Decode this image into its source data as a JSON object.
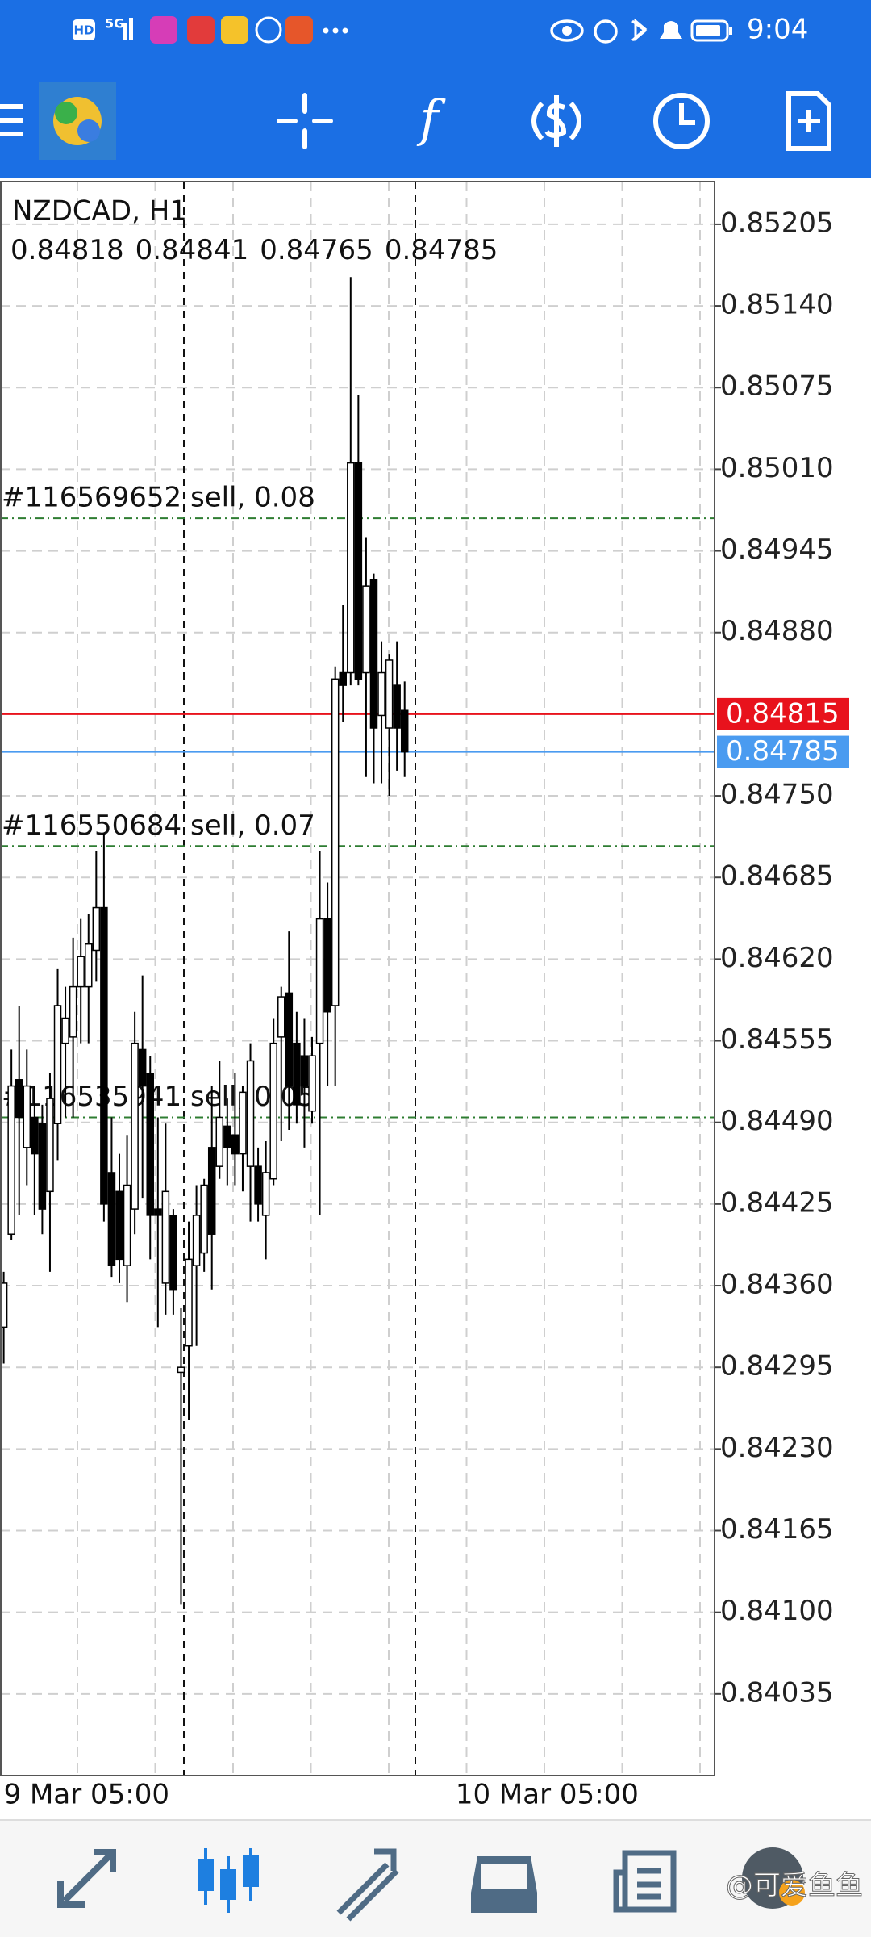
{
  "status_bar": {
    "time": "9:04",
    "hd": "HD",
    "network": "5G"
  },
  "toolbar": {
    "indicator_icon": "f"
  },
  "watermark": "@可爱鱼鱼",
  "chart_data": {
    "type": "candlestick",
    "title": "NZDCAD, H1",
    "categories": [
      "9 Mar 05:00",
      null,
      null,
      null,
      null,
      null,
      null,
      null,
      null,
      null,
      null,
      null,
      null,
      null,
      null,
      null,
      null,
      null,
      null,
      null,
      null,
      null,
      null,
      null,
      null,
      null,
      null,
      null,
      null,
      "10 Mar 05:00",
      null,
      null,
      null,
      null,
      null,
      null,
      null,
      null,
      null,
      null,
      null,
      null,
      null,
      null,
      null,
      null,
      null,
      null,
      null,
      null,
      null,
      null,
      null
    ],
    "open": [
      0.84327,
      0.84401,
      0.84524,
      0.8447,
      0.84494,
      0.84489,
      0.84435,
      0.84489,
      0.84553,
      0.84558,
      0.84598,
      0.84598,
      0.84627,
      0.84661,
      0.8445,
      0.84435,
      0.84376,
      0.84421,
      0.84548,
      0.84529,
      0.84421,
      0.84362,
      0.84416,
      0.84291,
      0.84312,
      0.84376,
      0.84386,
      0.8447,
      0.84455,
      0.84487,
      0.8448,
      0.84465,
      0.84455,
      0.84455,
      0.84416,
      0.84445,
      0.84558,
      0.84593,
      0.84553,
      0.84543,
      0.84499,
      0.84553,
      0.84652,
      0.84583,
      0.84848,
      0.84848,
      0.85015,
      0.84848,
      0.84922,
      0.84814,
      0.84804,
      0.84838,
      0.84818
    ],
    "high": [
      0.84371,
      0.84548,
      0.84583,
      0.84548,
      0.84519,
      0.84504,
      0.84529,
      0.84612,
      0.84598,
      0.84637,
      0.84652,
      0.84656,
      0.84706,
      0.8472,
      0.84494,
      0.84465,
      0.8448,
      0.84578,
      0.84607,
      0.84543,
      0.84494,
      0.84489,
      0.84421,
      0.84342,
      0.84411,
      0.8444,
      0.84445,
      0.84519,
      0.84539,
      0.84509,
      0.84529,
      0.84519,
      0.84553,
      0.8447,
      0.84475,
      0.84573,
      0.84598,
      0.84642,
      0.84578,
      0.84573,
      0.84558,
      0.84706,
      0.84681,
      0.84853,
      0.84902,
      0.85163,
      0.85069,
      0.84956,
      0.84927,
      0.84873,
      0.84863,
      0.84873,
      0.84841
    ],
    "low": [
      0.84298,
      0.84396,
      0.84416,
      0.8444,
      0.84416,
      0.84401,
      0.84371,
      0.8446,
      0.84494,
      0.84494,
      0.84553,
      0.84553,
      0.84602,
      0.84411,
      0.84367,
      0.84362,
      0.84347,
      0.84401,
      0.8443,
      0.84381,
      0.84327,
      0.84337,
      0.84337,
      0.84106,
      0.84253,
      0.84312,
      0.84371,
      0.84357,
      0.84445,
      0.8444,
      0.8444,
      0.84435,
      0.84411,
      0.84411,
      0.84381,
      0.8444,
      0.84475,
      0.84484,
      0.84489,
      0.8447,
      0.84489,
      0.84416,
      0.84519,
      0.84519,
      0.84809,
      0.84838,
      0.84838,
      0.84765,
      0.8476,
      0.8476,
      0.8475,
      0.8477,
      0.84765
    ],
    "close": [
      0.84362,
      0.84519,
      0.84494,
      0.84519,
      0.84465,
      0.84421,
      0.84509,
      0.84583,
      0.84573,
      0.84598,
      0.84622,
      0.84632,
      0.84661,
      0.84425,
      0.84376,
      0.84381,
      0.8444,
      0.84553,
      0.84519,
      0.84416,
      0.84416,
      0.84435,
      0.84357,
      0.84295,
      0.84381,
      0.84416,
      0.8444,
      0.84401,
      0.84494,
      0.8447,
      0.84465,
      0.84514,
      0.84539,
      0.84425,
      0.8445,
      0.84553,
      0.8459,
      0.84519,
      0.84504,
      0.84519,
      0.84543,
      0.84652,
      0.84578,
      0.84843,
      0.84838,
      0.85015,
      0.84843,
      0.84917,
      0.84804,
      0.84848,
      0.84858,
      0.84804,
      0.84785
    ],
    "up_color": "#ffffff",
    "down_color": "#000000",
    "ylim": [
      0.8397,
      0.85239
    ],
    "yticks": [
      0.85205,
      {
        "value": 0.8514,
        "label": "0.85140"
      },
      0.85075,
      {
        "value": 0.8501,
        "label": "0.85010"
      },
      0.84945,
      {
        "value": 0.8488,
        "label": "0.84880"
      },
      {
        "value": 0.8475,
        "label": "0.84750"
      },
      0.84685,
      {
        "value": 0.8462,
        "label": "0.84620"
      },
      0.84555,
      {
        "value": 0.8449,
        "label": "0.84490"
      },
      0.84425,
      {
        "value": 0.8436,
        "label": "0.84360"
      },
      0.84295,
      {
        "value": 0.8423,
        "label": "0.84230"
      },
      0.84165,
      {
        "value": 0.841,
        "label": "0.84100"
      },
      0.84035
    ],
    "grid": true,
    "bid": {
      "value": 0.84815,
      "color": "#e8121c"
    },
    "ask": {
      "value": 0.84785,
      "color": "#4a9bf0"
    },
    "orders": [
      {
        "label": "#116569652 sell, 0.08",
        "value": 0.84971
      },
      {
        "label": "#116550684 sell, 0.07",
        "value": 0.8471
      },
      {
        "label": "#116535941 sell, 0.05",
        "value": 0.84494
      }
    ],
    "order_color": "#2e7d32"
  }
}
